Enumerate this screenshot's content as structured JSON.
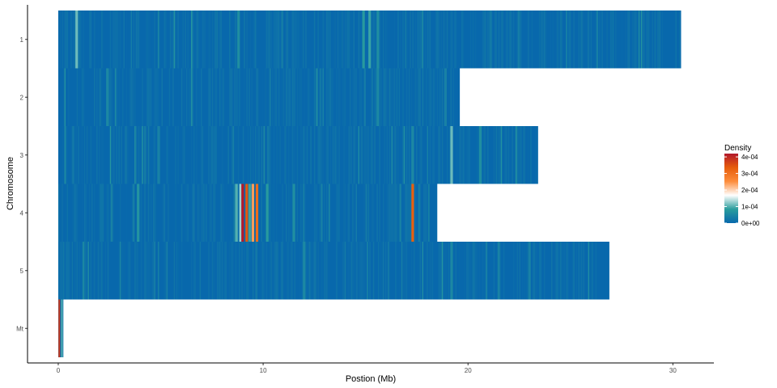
{
  "chart_data": {
    "type": "heatmap",
    "title": "",
    "xlabel": "Postion (Mb)",
    "ylabel": "Chromosome",
    "xlim": [
      -1.5,
      32
    ],
    "x_ticks": [
      0,
      10,
      20,
      30
    ],
    "x_tick_labels": [
      "0",
      "10",
      "20",
      "30"
    ],
    "grid": false,
    "legend": {
      "title": "Density",
      "position": "right",
      "ticks": [
        0,
        0.0001,
        0.0002,
        0.0003,
        0.0004
      ],
      "tick_labels": [
        "0e+00",
        "1e-04",
        "2e-04",
        "3e-04",
        "4e-04"
      ],
      "range": [
        0,
        0.00042
      ],
      "colors": [
        "#0868ac",
        "#2a9d9d",
        "#ffffff",
        "#fd8d3c",
        "#e65d0c",
        "#b2182b"
      ]
    },
    "chromosomes": [
      {
        "name": "1",
        "length": 30.4,
        "peaks": [
          {
            "pos": 0.9,
            "value": 0.00011
          },
          {
            "pos": 8.8,
            "value": 6e-05
          },
          {
            "pos": 14.9,
            "value": 8e-05
          },
          {
            "pos": 15.2,
            "value": 9e-05
          },
          {
            "pos": 15.6,
            "value": 6e-05
          }
        ]
      },
      {
        "name": "2",
        "length": 19.6,
        "peaks": [
          {
            "pos": 2.4,
            "value": 5e-05
          },
          {
            "pos": 15.6,
            "value": 5e-05
          },
          {
            "pos": 18.9,
            "value": 4e-05
          }
        ]
      },
      {
        "name": "3",
        "length": 23.4,
        "peaks": [
          {
            "pos": 4.9,
            "value": 4e-05
          },
          {
            "pos": 17.3,
            "value": 5e-05
          },
          {
            "pos": 19.2,
            "value": 0.00011
          },
          {
            "pos": 20.6,
            "value": 6e-05
          }
        ]
      },
      {
        "name": "4",
        "length": 18.5,
        "peaks": [
          {
            "pos": 3.9,
            "value": 7e-05
          },
          {
            "pos": 8.7,
            "value": 0.0001
          },
          {
            "pos": 8.9,
            "value": 0.00013
          },
          {
            "pos": 9.0,
            "value": 0.00042
          },
          {
            "pos": 9.2,
            "value": 0.00034
          },
          {
            "pos": 9.35,
            "value": 9e-05
          },
          {
            "pos": 9.5,
            "value": 0.00024
          },
          {
            "pos": 9.7,
            "value": 0.00031
          },
          {
            "pos": 10.2,
            "value": 8e-05
          },
          {
            "pos": 11.5,
            "value": 6e-05
          },
          {
            "pos": 17.3,
            "value": 0.00033
          }
        ]
      },
      {
        "name": "5",
        "length": 26.9,
        "peaks": [
          {
            "pos": 12.0,
            "value": 5e-05
          },
          {
            "pos": 19.2,
            "value": 5e-05
          },
          {
            "pos": 23.0,
            "value": 4e-05
          }
        ]
      },
      {
        "name": "Mt",
        "length": 0.25,
        "peaks": [
          {
            "pos": 0.05,
            "value": 0.00038
          },
          {
            "pos": 0.18,
            "value": 0.0001
          }
        ]
      }
    ]
  }
}
